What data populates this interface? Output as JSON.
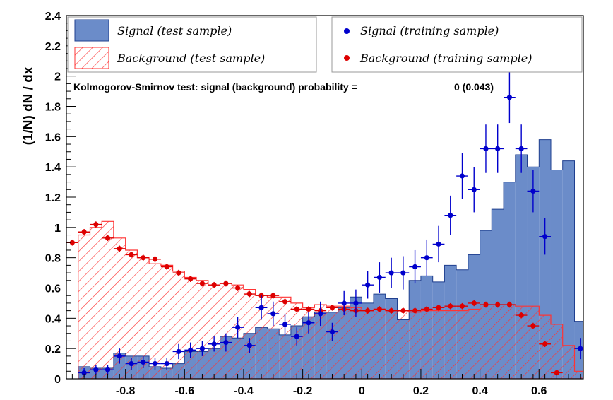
{
  "chart_data": {
    "type": "histogram",
    "ylabel": "(1/N) dN / dx",
    "xlabel": "",
    "xlim": [
      -1.0,
      0.75
    ],
    "ylim": [
      0,
      2.4
    ],
    "x_ticks": [
      "-0.8",
      "-0.6",
      "-0.4",
      "-0.2",
      "0",
      "0.2",
      "0.4",
      "0.6"
    ],
    "x_tick_values": [
      -0.8,
      -0.6,
      -0.4,
      -0.2,
      0,
      0.2,
      0.4,
      0.6
    ],
    "y_ticks": [
      "0",
      "0.2",
      "0.4",
      "0.6",
      "0.8",
      "1",
      "1.2",
      "1.4",
      "1.6",
      "1.8",
      "2",
      "2.2",
      "2.4"
    ],
    "y_tick_values": [
      0,
      0.2,
      0.4,
      0.6,
      0.8,
      1.0,
      1.2,
      1.4,
      1.6,
      1.8,
      2.0,
      2.2,
      2.4
    ],
    "bins": {
      "start": -0.96,
      "width": 0.04,
      "count": 43
    },
    "legend": {
      "signal_test": "Signal (test sample)",
      "background_test": "Background (test sample)",
      "signal_training": "Signal (training sample)",
      "background_training": "Background (training sample)"
    },
    "ks_label": "Kolmogorov-Smirnov test: signal (background) probability =",
    "ks_value": "0 (0.043)",
    "series": [
      {
        "name": "Signal (test sample)",
        "style": "filled-histogram",
        "color": "#6b8cc9",
        "values": [
          0.08,
          0.07,
          0.07,
          0.17,
          0.15,
          0.15,
          0.08,
          0.07,
          0.1,
          0.18,
          0.18,
          0.2,
          0.28,
          0.27,
          0.3,
          0.34,
          0.33,
          0.29,
          0.35,
          0.41,
          0.44,
          0.44,
          0.47,
          0.54,
          0.5,
          0.56,
          0.53,
          0.39,
          0.65,
          0.68,
          0.64,
          0.75,
          0.72,
          0.82,
          0.98,
          1.12,
          1.3,
          1.48,
          1.4,
          1.58,
          1.38,
          1.44,
          0.38
        ]
      },
      {
        "name": "Background (test sample)",
        "style": "hatched-histogram",
        "color": "#ff3333",
        "values": [
          0.95,
          1.0,
          1.04,
          0.93,
          0.85,
          0.8,
          0.76,
          0.75,
          0.71,
          0.67,
          0.65,
          0.62,
          0.63,
          0.62,
          0.59,
          0.55,
          0.54,
          0.54,
          0.5,
          0.47,
          0.49,
          0.48,
          0.48,
          0.47,
          0.45,
          0.46,
          0.45,
          0.45,
          0.44,
          0.45,
          0.45,
          0.45,
          0.45,
          0.46,
          0.49,
          0.49,
          0.49,
          0.48,
          0.48,
          0.42,
          0.36,
          0.22,
          0.05
        ]
      },
      {
        "name": "Signal (training sample)",
        "style": "points-errorbars",
        "color": "#0000cc",
        "values": [
          0.04,
          0.06,
          0.06,
          0.15,
          0.1,
          0.11,
          0.1,
          0.1,
          0.18,
          0.19,
          0.2,
          0.23,
          0.24,
          0.34,
          0.22,
          0.47,
          0.43,
          0.36,
          0.28,
          0.37,
          0.43,
          0.31,
          0.5,
          0.5,
          0.62,
          0.67,
          0.7,
          0.7,
          0.74,
          0.8,
          0.89,
          1.08,
          1.34,
          1.25,
          1.52,
          1.52,
          1.86,
          1.52,
          1.24,
          0.94,
          0.2
        ],
        "x": [
          -0.94,
          -0.9,
          -0.86,
          -0.82,
          -0.78,
          -0.74,
          -0.7,
          -0.66,
          -0.62,
          -0.58,
          -0.54,
          -0.5,
          -0.46,
          -0.42,
          -0.38,
          -0.34,
          -0.3,
          -0.26,
          -0.22,
          -0.18,
          -0.14,
          -0.1,
          -0.06,
          -0.02,
          0.02,
          0.06,
          0.1,
          0.14,
          0.18,
          0.22,
          0.26,
          0.3,
          0.34,
          0.38,
          0.42,
          0.46,
          0.5,
          0.54,
          0.58,
          0.62,
          0.74
        ],
        "errors": [
          0.03,
          0.03,
          0.03,
          0.05,
          0.04,
          0.04,
          0.04,
          0.04,
          0.05,
          0.05,
          0.05,
          0.05,
          0.06,
          0.07,
          0.05,
          0.08,
          0.08,
          0.07,
          0.06,
          0.07,
          0.08,
          0.06,
          0.08,
          0.09,
          0.09,
          0.1,
          0.1,
          0.11,
          0.11,
          0.12,
          0.12,
          0.13,
          0.15,
          0.15,
          0.16,
          0.16,
          0.17,
          0.16,
          0.14,
          0.12,
          0.07
        ]
      },
      {
        "name": "Background (training sample)",
        "style": "points-errorbars",
        "color": "#dd0000",
        "values": [
          0.9,
          0.97,
          1.02,
          0.93,
          0.86,
          0.82,
          0.8,
          0.79,
          0.74,
          0.7,
          0.66,
          0.63,
          0.62,
          0.63,
          0.6,
          0.56,
          0.55,
          0.55,
          0.51,
          0.46,
          0.46,
          0.45,
          0.47,
          0.46,
          0.45,
          0.45,
          0.46,
          0.45,
          0.45,
          0.45,
          0.46,
          0.47,
          0.48,
          0.48,
          0.5,
          0.49,
          0.49,
          0.49,
          0.42,
          0.35,
          0.23,
          0.04
        ],
        "x": [
          -0.98,
          -0.94,
          -0.9,
          -0.86,
          -0.82,
          -0.78,
          -0.74,
          -0.7,
          -0.66,
          -0.62,
          -0.58,
          -0.54,
          -0.5,
          -0.46,
          -0.42,
          -0.38,
          -0.34,
          -0.3,
          -0.26,
          -0.22,
          -0.18,
          -0.14,
          -0.1,
          -0.06,
          -0.02,
          0.02,
          0.06,
          0.1,
          0.14,
          0.18,
          0.22,
          0.26,
          0.3,
          0.34,
          0.38,
          0.42,
          0.46,
          0.5,
          0.54,
          0.58,
          0.62,
          0.66
        ],
        "errors": [
          0.02,
          0.02,
          0.02,
          0.02,
          0.02,
          0.02,
          0.02,
          0.02,
          0.02,
          0.02,
          0.02,
          0.02,
          0.02,
          0.02,
          0.02,
          0.02,
          0.02,
          0.02,
          0.02,
          0.02,
          0.02,
          0.02,
          0.02,
          0.02,
          0.02,
          0.02,
          0.02,
          0.02,
          0.02,
          0.02,
          0.02,
          0.02,
          0.02,
          0.02,
          0.02,
          0.02,
          0.02,
          0.02,
          0.02,
          0.02,
          0.02,
          0.02
        ]
      }
    ]
  }
}
